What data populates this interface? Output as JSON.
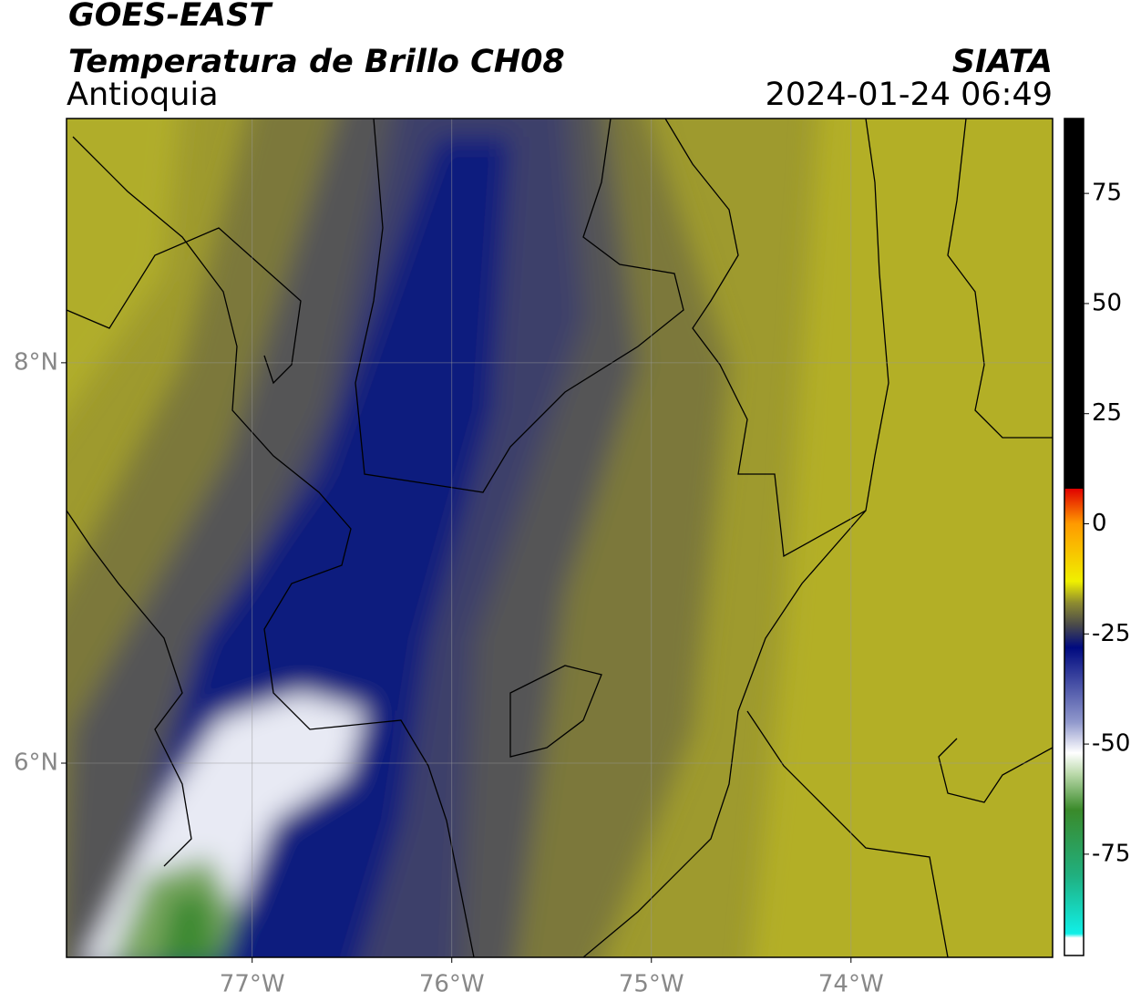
{
  "header": {
    "source": "GOES-EAST",
    "product": "Temperatura de Brillo CH08",
    "region": "Antioquia",
    "agency": "SIATA",
    "datetime": "2024-01-24 06:49"
  },
  "map": {
    "xlim": [
      -77.93,
      -72.99
    ],
    "ylim": [
      5.03,
      9.22
    ],
    "xticks": [
      {
        "value": -77,
        "label": "77°W"
      },
      {
        "value": -76,
        "label": "76°W"
      },
      {
        "value": -75,
        "label": "75°W"
      },
      {
        "value": -74,
        "label": "74°W"
      }
    ],
    "yticks": [
      {
        "value": 6,
        "label": "6°N"
      },
      {
        "value": 8,
        "label": "8°N"
      }
    ],
    "grid": true
  },
  "colorbar": {
    "lim": [
      -98,
      92
    ],
    "ticks": [
      75,
      50,
      25,
      0,
      -25,
      -50,
      -75
    ]
  }
}
